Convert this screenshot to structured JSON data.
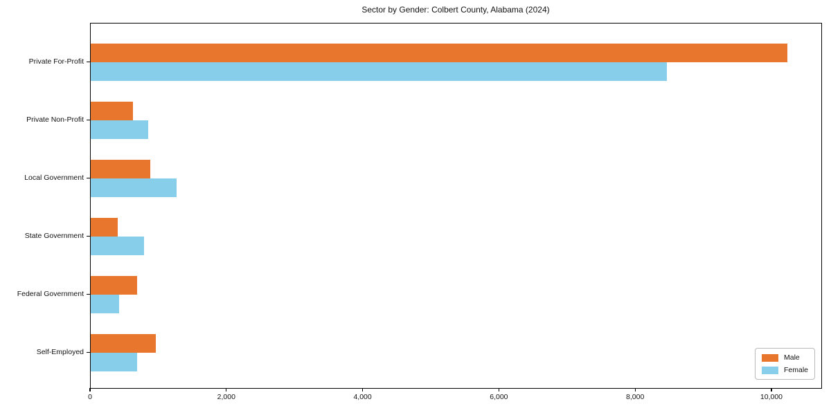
{
  "title": "Sector by Gender: Colbert County, Alabama (2024)",
  "chart_data": {
    "type": "bar",
    "orientation": "horizontal",
    "title": "Sector by Gender: Colbert County, Alabama (2024)",
    "xlabel": "",
    "ylabel": "",
    "categories": [
      "Private For-Profit",
      "Private Non-Profit",
      "Local Government",
      "State Government",
      "Federal Government",
      "Self-Employed"
    ],
    "series": [
      {
        "name": "Male",
        "color": "#e8762d",
        "values": [
          10220,
          620,
          870,
          395,
          685,
          955
        ]
      },
      {
        "name": "Female",
        "color": "#87ceeb",
        "values": [
          8455,
          845,
          1265,
          785,
          415,
          680
        ]
      }
    ],
    "xlim": [
      0,
      10732
    ],
    "xticks": [
      0,
      2000,
      4000,
      6000,
      8000,
      10000
    ],
    "xtick_labels": [
      "0",
      "2,000",
      "4,000",
      "6,000",
      "8,000",
      "10,000"
    ],
    "grid": false,
    "legend": {
      "position": "lower right",
      "entries": [
        "Male",
        "Female"
      ]
    }
  }
}
